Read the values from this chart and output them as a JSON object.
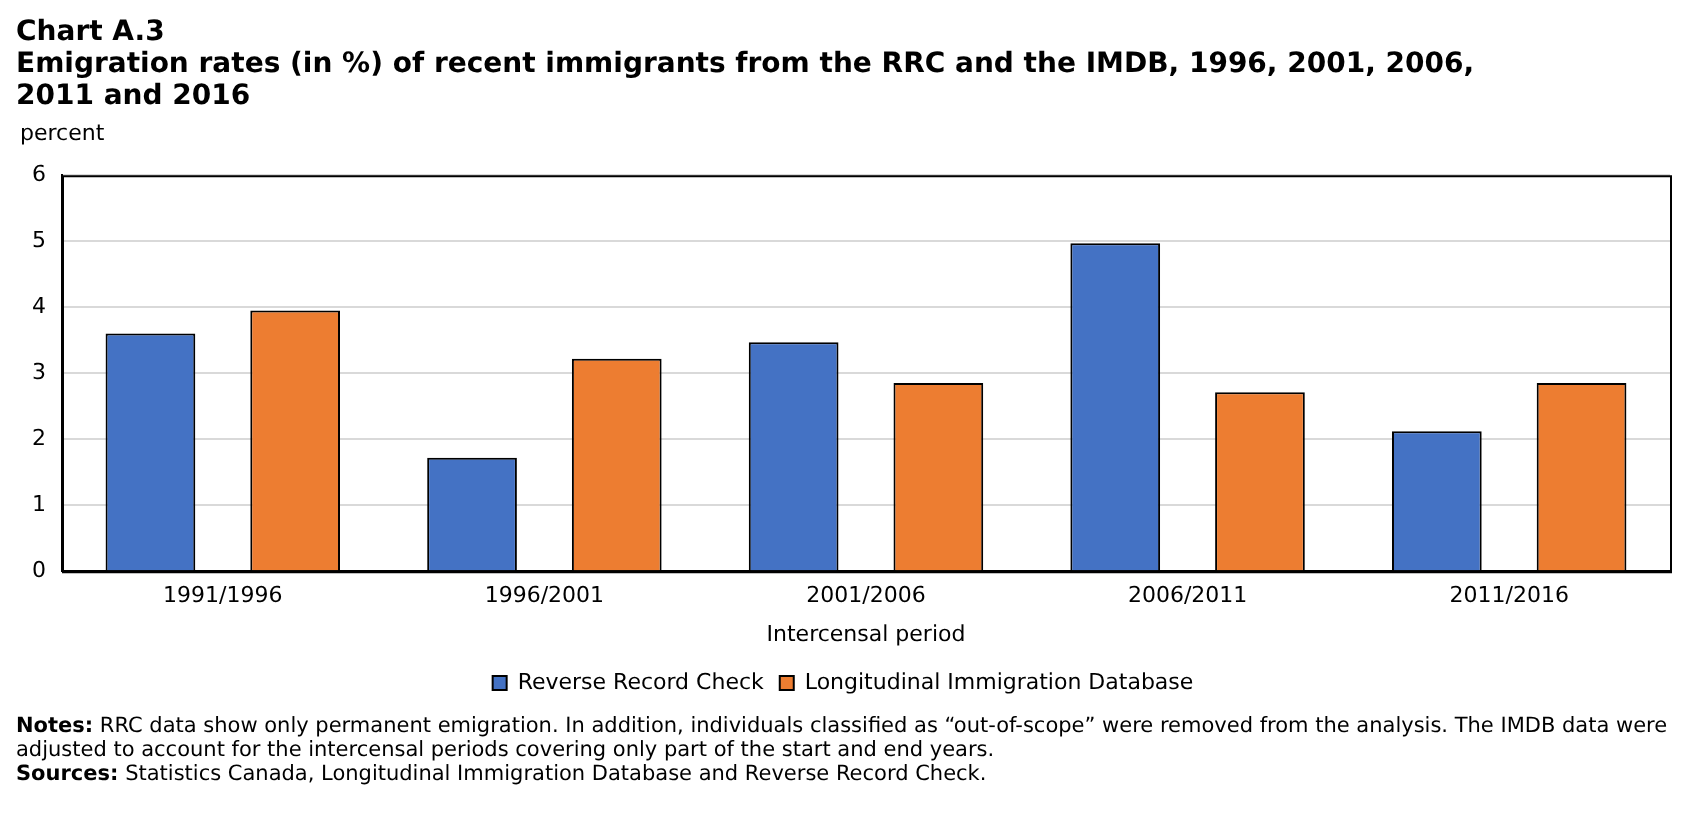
{
  "chart_data": {
    "type": "bar",
    "title": "Chart A.3",
    "subtitle": "Emigration rates (in %) of recent immigrants from the RRC and the IMDB, 1996, 2001, 2006, 2011 and 2016",
    "ylabel": "percent",
    "xlabel": "Intercensal period",
    "categories": [
      "1991/1996",
      "1996/2001",
      "2001/2006",
      "2006/2011",
      "2011/2016"
    ],
    "series": [
      {
        "name": "Reverse Record Check",
        "color": "#4472c4",
        "values": [
          3.6,
          1.72,
          3.47,
          4.97,
          2.12
        ]
      },
      {
        "name": "Longitudinal Immigration Database",
        "color": "#ed7d31",
        "values": [
          3.95,
          3.22,
          2.85,
          2.71,
          2.85
        ]
      }
    ],
    "ylim": [
      0,
      6
    ],
    "yticks": [
      0,
      1,
      2,
      3,
      4,
      5,
      6
    ],
    "grid": "y",
    "legend": "bottom",
    "annotations": [
      "Notes: RRC data show only permanent emigration. In addition, individuals classified as “out-of-scope” were removed from the analysis. The IMDB data were adjusted to account for the intercensal periods covering only part of the start and end years.",
      "Sources: Statistics Canada, Longitudinal Immigration Database and Reverse Record Check."
    ]
  }
}
